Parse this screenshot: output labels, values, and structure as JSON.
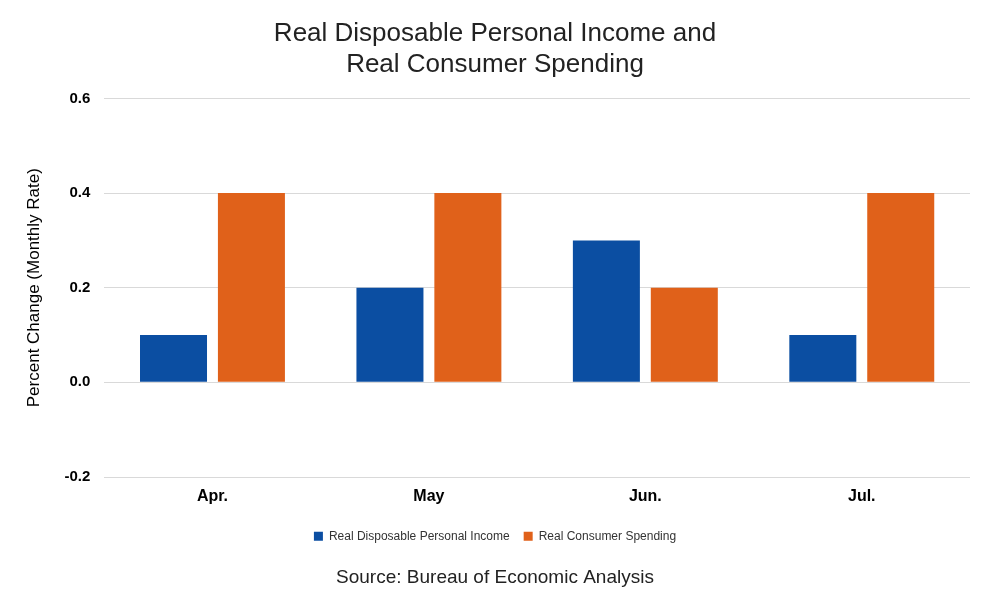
{
  "chart_data": {
    "type": "bar",
    "title": [
      "Real Disposable Personal Income and",
      "Real Consumer Spending"
    ],
    "y_label": "Percent Change (Monthly Rate)",
    "source": "Source: Bureau of Economic Analysis",
    "categories": [
      "Apr.",
      "May",
      "Jun.",
      "Jul."
    ],
    "series": [
      {
        "name": "Real Disposable Personal Income",
        "color": "#0b4ea2",
        "values": [
          0.1,
          0.2,
          0.3,
          0.1
        ]
      },
      {
        "name": "Real Consumer Spending",
        "color": "#e0611a",
        "values": [
          0.4,
          0.4,
          0.2,
          0.4
        ]
      }
    ],
    "ylim": [
      -0.2,
      0.6
    ],
    "yticks": [
      -0.2,
      {
        "value": 0,
        "label": "0.0"
      },
      0.2,
      0.4,
      0.6
    ],
    "grid": true,
    "legend": "bottom"
  }
}
